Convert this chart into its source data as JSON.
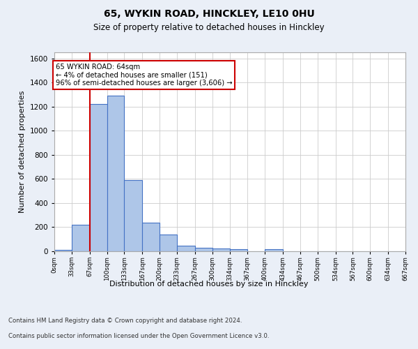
{
  "title": "65, WYKIN ROAD, HINCKLEY, LE10 0HU",
  "subtitle": "Size of property relative to detached houses in Hinckley",
  "xlabel": "Distribution of detached houses by size in Hinckley",
  "ylabel": "Number of detached properties",
  "bin_edges": [
    0,
    33,
    67,
    100,
    133,
    167,
    200,
    233,
    267,
    300,
    334,
    367,
    400,
    434,
    467,
    500,
    534,
    567,
    600,
    634,
    667
  ],
  "bar_heights": [
    10,
    220,
    1220,
    1290,
    590,
    235,
    140,
    45,
    30,
    25,
    15,
    0,
    15,
    0,
    0,
    0,
    0,
    0,
    0,
    0
  ],
  "bar_color": "#aec6e8",
  "bar_edge_color": "#4472c4",
  "property_line_x": 67,
  "property_line_color": "#cc0000",
  "annotation_line1": "65 WYKIN ROAD: 64sqm",
  "annotation_line2": "← 4% of detached houses are smaller (151)",
  "annotation_line3": "96% of semi-detached houses are larger (3,606) →",
  "annotation_box_color": "#cc0000",
  "annotation_bg_color": "#ffffff",
  "ylim": [
    0,
    1650
  ],
  "yticks": [
    0,
    200,
    400,
    600,
    800,
    1000,
    1200,
    1400,
    1600
  ],
  "bg_color": "#eaeff7",
  "plot_bg_color": "#ffffff",
  "grid_color": "#cccccc",
  "footer_line1": "Contains HM Land Registry data © Crown copyright and database right 2024.",
  "footer_line2": "Contains public sector information licensed under the Open Government Licence v3.0.",
  "tick_labels": [
    "0sqm",
    "33sqm",
    "67sqm",
    "100sqm",
    "133sqm",
    "167sqm",
    "200sqm",
    "233sqm",
    "267sqm",
    "300sqm",
    "334sqm",
    "367sqm",
    "400sqm",
    "434sqm",
    "467sqm",
    "500sqm",
    "534sqm",
    "567sqm",
    "600sqm",
    "634sqm",
    "667sqm"
  ]
}
